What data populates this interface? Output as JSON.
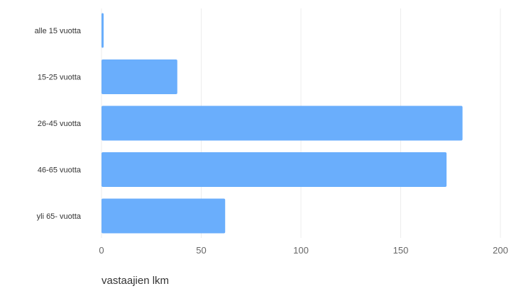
{
  "chart_data": {
    "type": "bar",
    "orientation": "horizontal",
    "categories": [
      "alle 15 vuotta",
      "15-25 vuotta",
      "26-45 vuotta",
      "46-65 vuotta",
      "yli 65- vuotta"
    ],
    "values": [
      1,
      38,
      181,
      173,
      62
    ],
    "xlabel": "vastaajien lkm",
    "ylabel": "",
    "xlim": [
      0,
      200
    ],
    "xticks": [
      "0",
      "50",
      "100",
      "150",
      "200"
    ],
    "grid": true,
    "bar_color": "#6aaefc",
    "legend": "none"
  }
}
